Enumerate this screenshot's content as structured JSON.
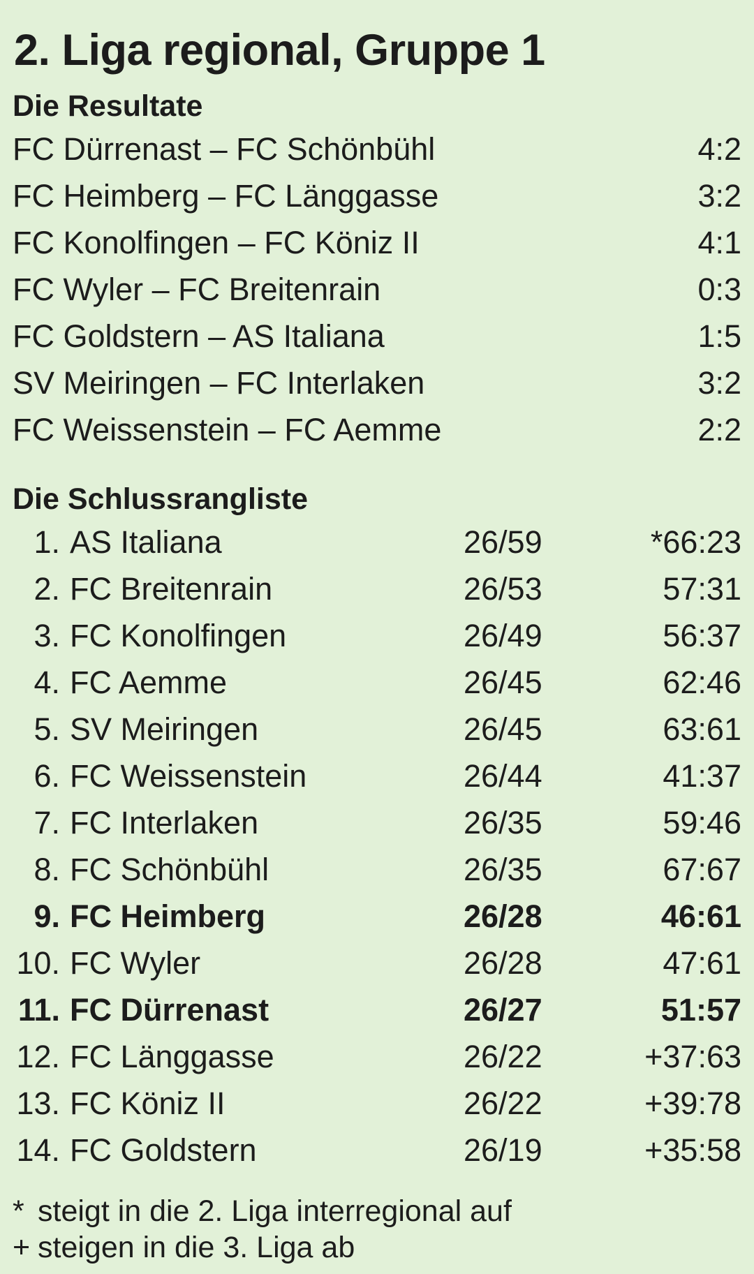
{
  "title": "2. Liga regional, Gruppe 1",
  "results": {
    "heading": "Die Resultate",
    "matches": [
      {
        "match": "FC Dürrenast – FC Schönbühl",
        "score": "4:2"
      },
      {
        "match": "FC Heimberg – FC Länggasse",
        "score": "3:2"
      },
      {
        "match": "FC Konolfingen – FC Köniz II",
        "score": "4:1"
      },
      {
        "match": "FC Wyler – FC Breitenrain",
        "score": "0:3"
      },
      {
        "match": "FC Goldstern – AS Italiana",
        "score": "1:5"
      },
      {
        "match": "SV Meiringen – FC Interlaken",
        "score": "3:2"
      },
      {
        "match": "FC Weissenstein – FC Aemme",
        "score": "2:2"
      }
    ]
  },
  "standings": {
    "heading": "Die Schlussrangliste",
    "rows": [
      {
        "rank": "1.",
        "team": "AS Italiana",
        "record": "26/59",
        "goals": "*66:23",
        "bold": false
      },
      {
        "rank": "2.",
        "team": "FC Breitenrain",
        "record": "26/53",
        "goals": "57:31",
        "bold": false
      },
      {
        "rank": "3.",
        "team": "FC Konolfingen",
        "record": "26/49",
        "goals": "56:37",
        "bold": false
      },
      {
        "rank": "4.",
        "team": "FC Aemme",
        "record": "26/45",
        "goals": "62:46",
        "bold": false
      },
      {
        "rank": "5.",
        "team": "SV Meiringen",
        "record": "26/45",
        "goals": "63:61",
        "bold": false
      },
      {
        "rank": "6.",
        "team": "FC Weissenstein",
        "record": "26/44",
        "goals": "41:37",
        "bold": false
      },
      {
        "rank": "7.",
        "team": "FC Interlaken",
        "record": "26/35",
        "goals": "59:46",
        "bold": false
      },
      {
        "rank": "8.",
        "team": "FC Schönbühl",
        "record": "26/35",
        "goals": "67:67",
        "bold": false
      },
      {
        "rank": "9.",
        "team": "FC Heimberg",
        "record": "26/28",
        "goals": "46:61",
        "bold": true
      },
      {
        "rank": "10.",
        "team": "FC Wyler",
        "record": "26/28",
        "goals": "47:61",
        "bold": false
      },
      {
        "rank": "11.",
        "team": "FC Dürrenast",
        "record": "26/27",
        "goals": "51:57",
        "bold": true
      },
      {
        "rank": "12.",
        "team": "FC Länggasse",
        "record": "26/22",
        "goals": "+37:63",
        "bold": false
      },
      {
        "rank": "13.",
        "team": "FC Köniz II",
        "record": "26/22",
        "goals": "+39:78",
        "bold": false
      },
      {
        "rank": "14.",
        "team": "FC Goldstern",
        "record": "26/19",
        "goals": "+35:58",
        "bold": false
      }
    ]
  },
  "footnotes": [
    {
      "mark": "*",
      "text": "steigt in die 2. Liga interregional auf"
    },
    {
      "mark": "+",
      "text": "steigen in die 3. Liga ab"
    }
  ]
}
